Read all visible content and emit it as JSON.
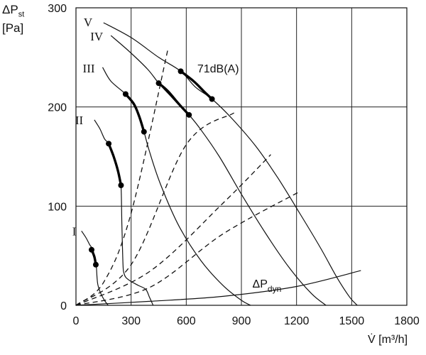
{
  "chart_data": {
    "type": "line",
    "y_label": {
      "symbol": "ΔP",
      "subscript": "st",
      "unit": "[Pa]"
    },
    "x_label": {
      "symbol": "V̇",
      "unit": "[m³/h]"
    },
    "xlim": [
      0,
      1800
    ],
    "ylim": [
      0,
      300
    ],
    "x_ticks": [
      0,
      300,
      600,
      900,
      1200,
      1500,
      1800
    ],
    "y_ticks": [
      0,
      100,
      200,
      300
    ],
    "x_tick_labels": [
      "0",
      "300",
      "600",
      "900",
      "1200",
      "1500",
      "1800"
    ],
    "y_tick_labels": [
      "0",
      "100",
      "200",
      "300"
    ],
    "grid": true,
    "fan_curves": [
      {
        "name": "I",
        "points": [
          [
            30,
            75
          ],
          [
            55,
            68
          ],
          [
            75,
            61
          ],
          [
            90,
            57
          ],
          [
            100,
            50
          ],
          [
            110,
            41
          ],
          [
            115,
            27
          ],
          [
            120,
            20
          ],
          [
            135,
            12
          ],
          [
            155,
            5
          ],
          [
            175,
            0
          ]
        ],
        "bold_segment": [
          [
            85,
            56
          ],
          [
            100,
            49
          ],
          [
            108,
            41
          ]
        ],
        "markers": [
          [
            85,
            56
          ],
          [
            108,
            41
          ]
        ]
      },
      {
        "name": "II",
        "points": [
          [
            100,
            187
          ],
          [
            130,
            178
          ],
          [
            155,
            168
          ],
          [
            178,
            163
          ],
          [
            200,
            153
          ],
          [
            220,
            141
          ],
          [
            232,
            132
          ],
          [
            245,
            121
          ],
          [
            250,
            80
          ],
          [
            256,
            40
          ],
          [
            262,
            32
          ],
          [
            272,
            28
          ],
          [
            300,
            24
          ],
          [
            340,
            20
          ],
          [
            380,
            16
          ],
          [
            400,
            8
          ],
          [
            415,
            2
          ],
          [
            420,
            0
          ]
        ],
        "bold_segment": [
          [
            178,
            163
          ],
          [
            205,
            150
          ],
          [
            228,
            136
          ],
          [
            245,
            121
          ]
        ],
        "markers": [
          [
            178,
            163
          ],
          [
            245,
            121
          ]
        ]
      },
      {
        "name": "III",
        "points": [
          [
            145,
            240
          ],
          [
            190,
            226
          ],
          [
            270,
            213
          ],
          [
            310,
            203
          ],
          [
            345,
            190
          ],
          [
            370,
            175
          ],
          [
            400,
            155
          ],
          [
            460,
            122
          ],
          [
            560,
            80
          ],
          [
            680,
            45
          ],
          [
            800,
            20
          ],
          [
            900,
            5
          ],
          [
            950,
            0
          ]
        ],
        "bold_segment": [
          [
            270,
            213
          ],
          [
            315,
            203
          ],
          [
            345,
            190
          ],
          [
            370,
            175
          ]
        ],
        "markers": [
          [
            270,
            213
          ],
          [
            370,
            175
          ]
        ]
      },
      {
        "name": "IV",
        "points": [
          [
            190,
            272
          ],
          [
            290,
            256
          ],
          [
            390,
            238
          ],
          [
            450,
            224
          ],
          [
            520,
            210
          ],
          [
            570,
            200
          ],
          [
            615,
            192
          ],
          [
            680,
            177
          ],
          [
            780,
            150
          ],
          [
            900,
            112
          ],
          [
            1030,
            73
          ],
          [
            1160,
            38
          ],
          [
            1280,
            12
          ],
          [
            1360,
            0
          ]
        ],
        "bold_segment": [
          [
            450,
            224
          ],
          [
            500,
            216
          ],
          [
            560,
            203
          ],
          [
            615,
            192
          ]
        ],
        "markers": [
          [
            450,
            224
          ],
          [
            615,
            192
          ]
        ]
      },
      {
        "name": "V",
        "points": [
          [
            150,
            285
          ],
          [
            300,
            270
          ],
          [
            450,
            250
          ],
          [
            570,
            236
          ],
          [
            650,
            220
          ],
          [
            740,
            208
          ],
          [
            850,
            188
          ],
          [
            980,
            160
          ],
          [
            1100,
            128
          ],
          [
            1220,
            92
          ],
          [
            1330,
            58
          ],
          [
            1420,
            28
          ],
          [
            1490,
            8
          ],
          [
            1530,
            0
          ]
        ],
        "bold_segment": [
          [
            570,
            236
          ],
          [
            640,
            226
          ],
          [
            700,
            215
          ],
          [
            740,
            208
          ]
        ],
        "markers": [
          [
            570,
            236
          ],
          [
            740,
            208
          ]
        ]
      }
    ],
    "system_curves": [
      {
        "points": [
          [
            0,
            0
          ],
          [
            150,
            23
          ],
          [
            300,
            93
          ],
          [
            500,
            258
          ]
        ]
      },
      {
        "points": [
          [
            0,
            0
          ],
          [
            300,
            41
          ],
          [
            600,
            162
          ],
          [
            860,
            194
          ]
        ]
      },
      {
        "points": [
          [
            0,
            0
          ],
          [
            400,
            34
          ],
          [
            800,
            103
          ],
          [
            1060,
            152
          ]
        ]
      },
      {
        "points": [
          [
            0,
            0
          ],
          [
            400,
            18
          ],
          [
            800,
            72
          ],
          [
            1210,
            114
          ]
        ]
      }
    ],
    "dynamic_pressure_curve": {
      "points": [
        [
          0,
          0
        ],
        [
          400,
          4
        ],
        [
          800,
          9
        ],
        [
          1200,
          19
        ],
        [
          1550,
          35
        ]
      ]
    },
    "annotations": [
      {
        "text": "71dB(A)",
        "x": 660,
        "y": 235
      },
      {
        "text_main": "ΔP",
        "text_sub": "dyn",
        "x": 960,
        "y": 15
      }
    ]
  }
}
